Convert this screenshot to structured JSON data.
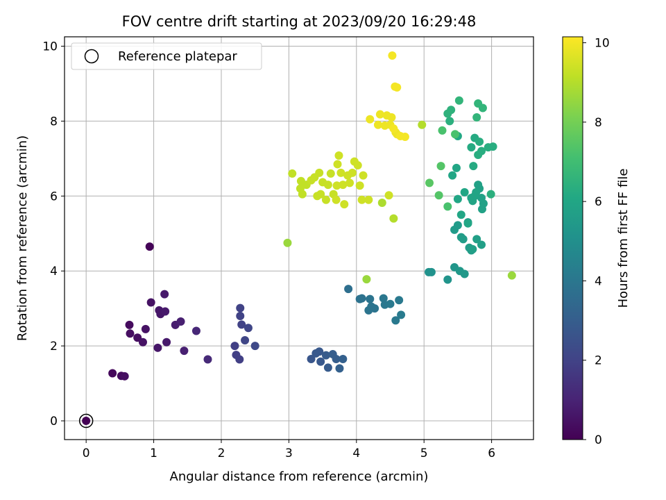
{
  "chart_data": {
    "type": "scatter",
    "title": "FOV centre drift starting at 2023/09/20 16:29:48",
    "xlabel": "Angular distance from reference (arcmin)",
    "ylabel": "Rotation from reference (arcmin)",
    "xlim": [
      -0.32,
      6.62
    ],
    "ylim": [
      -0.5,
      10.25
    ],
    "xticks": [
      0,
      1,
      2,
      3,
      4,
      5,
      6
    ],
    "yticks": [
      0,
      2,
      4,
      6,
      8,
      10
    ],
    "grid": true,
    "legend": {
      "position": "top-left",
      "entries": [
        "Reference platepar"
      ]
    },
    "colorbar": {
      "label": "Hours from first FF file",
      "min": 0,
      "max": 10.15,
      "ticks": [
        0,
        2,
        4,
        6,
        8,
        10
      ],
      "colormap": "viridis"
    },
    "reference_point": {
      "x": 0,
      "y": 0
    },
    "series": [
      {
        "points": [
          [
            0,
            0,
            0
          ],
          [
            0.94,
            4.65,
            0.1
          ],
          [
            0.39,
            1.27,
            0.2
          ],
          [
            0.52,
            1.2,
            0.3
          ],
          [
            0.57,
            1.19,
            0.4
          ],
          [
            0.64,
            2.56,
            0.3
          ],
          [
            0.65,
            2.33,
            0.4
          ],
          [
            0.76,
            2.22,
            0.4
          ],
          [
            0.84,
            2.1,
            0.5
          ],
          [
            0.88,
            2.45,
            0.5
          ],
          [
            0.96,
            3.16,
            0.5
          ],
          [
            1.06,
            1.95,
            0.6
          ],
          [
            1.08,
            2.95,
            0.6
          ],
          [
            1.1,
            2.85,
            0.6
          ],
          [
            1.16,
            3.38,
            0.7
          ],
          [
            1.17,
            2.92,
            0.7
          ],
          [
            1.19,
            2.1,
            0.7
          ],
          [
            1.32,
            2.56,
            0.8
          ],
          [
            1.4,
            2.65,
            0.9
          ],
          [
            1.45,
            1.87,
            0.9
          ],
          [
            1.63,
            2.4,
            1.1
          ],
          [
            1.8,
            1.64,
            1.2
          ],
          [
            2.2,
            2.0,
            1.9
          ],
          [
            2.22,
            1.76,
            1.9
          ],
          [
            2.27,
            1.64,
            1.9
          ],
          [
            2.28,
            3.01,
            2.0
          ],
          [
            2.28,
            2.8,
            2.0
          ],
          [
            2.3,
            2.57,
            2.0
          ],
          [
            2.35,
            2.15,
            2.1
          ],
          [
            2.4,
            2.48,
            2.1
          ],
          [
            2.5,
            2.0,
            2.2
          ],
          [
            3.33,
            1.65,
            2.7
          ],
          [
            3.4,
            1.8,
            2.8
          ],
          [
            3.45,
            1.85,
            2.8
          ],
          [
            3.47,
            1.58,
            2.8
          ],
          [
            3.55,
            1.75,
            2.9
          ],
          [
            3.58,
            1.42,
            2.9
          ],
          [
            3.65,
            1.78,
            3.0
          ],
          [
            3.7,
            1.65,
            3.0
          ],
          [
            3.75,
            1.4,
            3.1
          ],
          [
            3.8,
            1.65,
            3.1
          ],
          [
            3.88,
            3.52,
            3.7
          ],
          [
            4.05,
            3.25,
            3.8
          ],
          [
            4.08,
            3.27,
            3.8
          ],
          [
            4.2,
            3.25,
            3.9
          ],
          [
            4.18,
            2.95,
            3.9
          ],
          [
            4.22,
            3.05,
            3.9
          ],
          [
            4.27,
            3.0,
            3.9
          ],
          [
            4.4,
            3.27,
            4.0
          ],
          [
            4.42,
            3.1,
            4.0
          ],
          [
            4.5,
            3.12,
            4.1
          ],
          [
            4.58,
            2.68,
            4.1
          ],
          [
            4.63,
            3.22,
            4.1
          ],
          [
            4.66,
            2.83,
            4.2
          ],
          [
            5.07,
            3.97,
            5.1
          ],
          [
            5.11,
            3.97,
            5.1
          ],
          [
            5.35,
            3.77,
            5.2
          ],
          [
            5.45,
            4.1,
            5.3
          ],
          [
            5.53,
            4.0,
            5.4
          ],
          [
            5.6,
            3.92,
            5.4
          ],
          [
            5.45,
            5.1,
            5.5
          ],
          [
            5.5,
            5.22,
            5.5
          ],
          [
            5.55,
            4.9,
            5.6
          ],
          [
            5.58,
            4.85,
            5.6
          ],
          [
            5.65,
            5.3,
            5.6
          ],
          [
            5.67,
            4.62,
            5.6
          ],
          [
            5.7,
            4.55,
            5.6
          ],
          [
            5.72,
            4.58,
            5.7
          ],
          [
            5.78,
            4.85,
            5.7
          ],
          [
            5.85,
            4.7,
            5.7
          ],
          [
            5.86,
            5.65,
            5.8
          ],
          [
            5.88,
            5.8,
            5.8
          ],
          [
            5.85,
            5.95,
            5.8
          ],
          [
            5.82,
            6.2,
            5.8
          ],
          [
            5.8,
            6.3,
            5.8
          ],
          [
            5.77,
            6.1,
            5.9
          ],
          [
            5.75,
            6.0,
            5.9
          ],
          [
            5.72,
            5.87,
            5.9
          ],
          [
            5.7,
            5.95,
            5.9
          ],
          [
            5.6,
            6.1,
            6.0
          ],
          [
            5.5,
            5.92,
            6.0
          ],
          [
            5.42,
            6.55,
            6.0
          ],
          [
            5.48,
            6.75,
            6.0
          ],
          [
            5.5,
            7.6,
            6.1
          ],
          [
            5.55,
            5.5,
            6.0
          ],
          [
            5.65,
            5.27,
            6.0
          ],
          [
            5.73,
            6.8,
            6.2
          ],
          [
            5.75,
            7.55,
            6.2
          ],
          [
            5.7,
            7.3,
            6.2
          ],
          [
            5.82,
            7.45,
            6.3
          ],
          [
            5.8,
            7.1,
            6.3
          ],
          [
            5.85,
            7.2,
            6.3
          ],
          [
            5.95,
            7.3,
            6.3
          ],
          [
            6.02,
            7.32,
            6.3
          ],
          [
            5.99,
            6.05,
            6.4
          ],
          [
            5.38,
            8.0,
            6.4
          ],
          [
            5.35,
            8.2,
            6.5
          ],
          [
            5.4,
            8.3,
            6.5
          ],
          [
            5.52,
            8.55,
            6.6
          ],
          [
            5.8,
            8.47,
            6.6
          ],
          [
            5.87,
            8.35,
            6.6
          ],
          [
            5.78,
            8.1,
            6.6
          ],
          [
            5.27,
            7.75,
            7.2
          ],
          [
            5.46,
            7.65,
            7.2
          ],
          [
            5.35,
            5.72,
            7.2
          ],
          [
            5.25,
            6.8,
            7.4
          ],
          [
            5.22,
            6.02,
            7.4
          ],
          [
            5.08,
            6.35,
            7.5
          ],
          [
            6.3,
            3.88,
            8.6
          ],
          [
            2.98,
            4.75,
            8.6
          ],
          [
            4.15,
            3.78,
            8.6
          ],
          [
            4.38,
            5.82,
            8.9
          ],
          [
            4.55,
            5.4,
            9.0
          ],
          [
            4.97,
            7.9,
            9.0
          ],
          [
            3.05,
            6.6,
            9.2
          ],
          [
            3.18,
            6.4,
            9.2
          ],
          [
            3.17,
            6.2,
            9.2
          ],
          [
            3.2,
            6.05,
            9.2
          ],
          [
            3.26,
            6.3,
            9.2
          ],
          [
            3.33,
            6.42,
            9.3
          ],
          [
            3.38,
            6.5,
            9.3
          ],
          [
            3.42,
            6.0,
            9.3
          ],
          [
            3.47,
            6.05,
            9.3
          ],
          [
            3.45,
            6.62,
            9.3
          ],
          [
            3.5,
            6.37,
            9.3
          ],
          [
            3.55,
            5.9,
            9.3
          ],
          [
            3.58,
            6.3,
            9.3
          ],
          [
            3.62,
            6.6,
            9.3
          ],
          [
            3.66,
            6.05,
            9.3
          ],
          [
            3.7,
            5.9,
            9.4
          ],
          [
            3.71,
            6.28,
            9.4
          ],
          [
            3.72,
            6.85,
            9.4
          ],
          [
            3.74,
            7.08,
            9.4
          ],
          [
            3.77,
            6.62,
            9.4
          ],
          [
            3.8,
            6.3,
            9.4
          ],
          [
            3.82,
            5.78,
            9.4
          ],
          [
            3.87,
            6.55,
            9.4
          ],
          [
            3.9,
            6.35,
            9.4
          ],
          [
            3.94,
            6.62,
            9.4
          ],
          [
            3.97,
            6.92,
            9.4
          ],
          [
            4.02,
            6.82,
            9.4
          ],
          [
            4.05,
            6.28,
            9.4
          ],
          [
            4.1,
            6.55,
            9.4
          ],
          [
            4.08,
            5.9,
            9.4
          ],
          [
            4.18,
            5.9,
            9.4
          ],
          [
            4.48,
            6.02,
            9.4
          ],
          [
            4.2,
            8.05,
            9.9
          ],
          [
            4.32,
            7.9,
            9.9
          ],
          [
            4.35,
            8.18,
            9.9
          ],
          [
            4.42,
            7.88,
            9.9
          ],
          [
            4.45,
            8.15,
            9.9
          ],
          [
            4.5,
            7.9,
            9.9
          ],
          [
            4.52,
            8.1,
            9.9
          ],
          [
            4.58,
            7.7,
            9.9
          ],
          [
            4.6,
            7.65,
            9.9
          ],
          [
            4.65,
            7.6,
            10.0
          ],
          [
            4.72,
            7.58,
            10.0
          ],
          [
            4.57,
            8.92,
            10.0
          ],
          [
            4.6,
            8.9,
            10.0
          ],
          [
            4.53,
            9.75,
            10.0
          ],
          [
            4.55,
            7.8,
            10.0
          ]
        ]
      }
    ]
  }
}
